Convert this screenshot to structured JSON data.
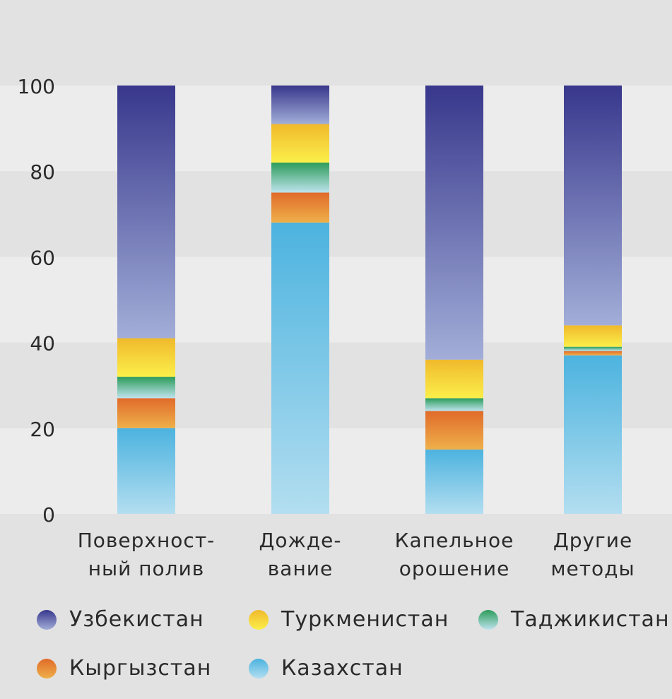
{
  "chart_data": {
    "type": "bar",
    "stacked": true,
    "categories": [
      [
        "Поверхност-",
        "ный полив"
      ],
      [
        "Дожде-",
        "вание"
      ],
      [
        "Капельное",
        "орошение"
      ],
      [
        "Другие",
        "методы"
      ]
    ],
    "ylim": [
      0,
      100
    ],
    "yticks": [
      0,
      20,
      40,
      60,
      80,
      100
    ],
    "grid": "alternating horizontal bands",
    "legend_position": "bottom",
    "series": [
      {
        "name": "Казахстан",
        "values": [
          20,
          68,
          15,
          37
        ],
        "color_top": "#4cb3df",
        "color_bottom": "#b3def0"
      },
      {
        "name": "Кыргызстан",
        "values": [
          7,
          7,
          9,
          1
        ],
        "color_top": "#e06b2a",
        "color_bottom": "#efb04a"
      },
      {
        "name": "Таджикистан",
        "values": [
          5,
          7,
          3,
          1
        ],
        "color_top": "#2c9c5a",
        "color_bottom": "#bfe3ee"
      },
      {
        "name": "Туркменистан",
        "values": [
          9,
          9,
          9,
          5
        ],
        "color_top": "#f0b92c",
        "color_bottom": "#fbef4a"
      },
      {
        "name": "Узбекистан",
        "values": [
          59,
          9,
          64,
          56
        ],
        "color_top": "#38378c",
        "color_bottom": "#a2aed8"
      }
    ]
  },
  "legend": {
    "items": [
      {
        "label": "Узбекистан",
        "color_top": "#38378c",
        "color_bottom": "#a2aed8"
      },
      {
        "label": "Туркменистан",
        "color_top": "#f0b92c",
        "color_bottom": "#fbef4a"
      },
      {
        "label": "Таджикистан",
        "color_top": "#2c9c5a",
        "color_bottom": "#bfe3ee"
      },
      {
        "label": "Кыргызстан",
        "color_top": "#e06b2a",
        "color_bottom": "#efb04a"
      },
      {
        "label": "Казахстан",
        "color_top": "#4cb3df",
        "color_bottom": "#b3def0"
      }
    ]
  }
}
